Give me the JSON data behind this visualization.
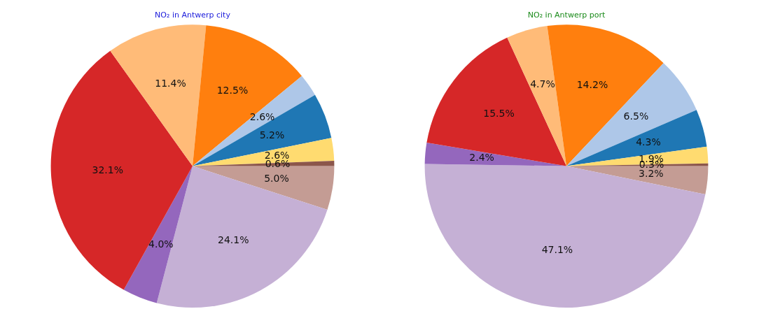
{
  "chart_data": [
    {
      "type": "pie",
      "title": "NO₂ in Antwerp city",
      "categories": [
        null,
        null,
        null,
        null,
        null,
        null,
        null,
        null,
        null,
        null
      ],
      "values": [
        5.0,
        24.1,
        4.0,
        32.1,
        11.4,
        12.5,
        2.6,
        5.2,
        2.6,
        0.6
      ],
      "colors": [
        "#c49c94",
        "#c5b0d5",
        "#9467bd",
        "#d62728",
        "#ffbb78",
        "#ff7f0e",
        "#aec7e8",
        "#1f77b4",
        "#ffdb70",
        "#8c564b"
      ],
      "value_labels": [
        "5.0%",
        "24.1%",
        "4.0%",
        "32.1%",
        "11.4%",
        "12.5%",
        "2.6%",
        "5.2%",
        "2.6%",
        "0.6%"
      ],
      "legend": false
    },
    {
      "type": "pie",
      "title": "NO₂ in Antwerp port",
      "categories": [
        null,
        null,
        null,
        null,
        null,
        null,
        null,
        null,
        null,
        null
      ],
      "values": [
        3.2,
        47.1,
        2.4,
        15.5,
        4.7,
        14.2,
        6.5,
        4.3,
        1.9,
        0.3
      ],
      "colors": [
        "#c49c94",
        "#c5b0d5",
        "#9467bd",
        "#d62728",
        "#ffbb78",
        "#ff7f0e",
        "#aec7e8",
        "#1f77b4",
        "#ffdb70",
        "#8c564b"
      ],
      "value_labels": [
        "3.2%",
        "47.1%",
        "2.4%",
        "15.5%",
        "4.7%",
        "14.2%",
        "6.5%",
        "4.3%",
        "1.9%",
        "0.3%"
      ],
      "legend": false
    }
  ]
}
